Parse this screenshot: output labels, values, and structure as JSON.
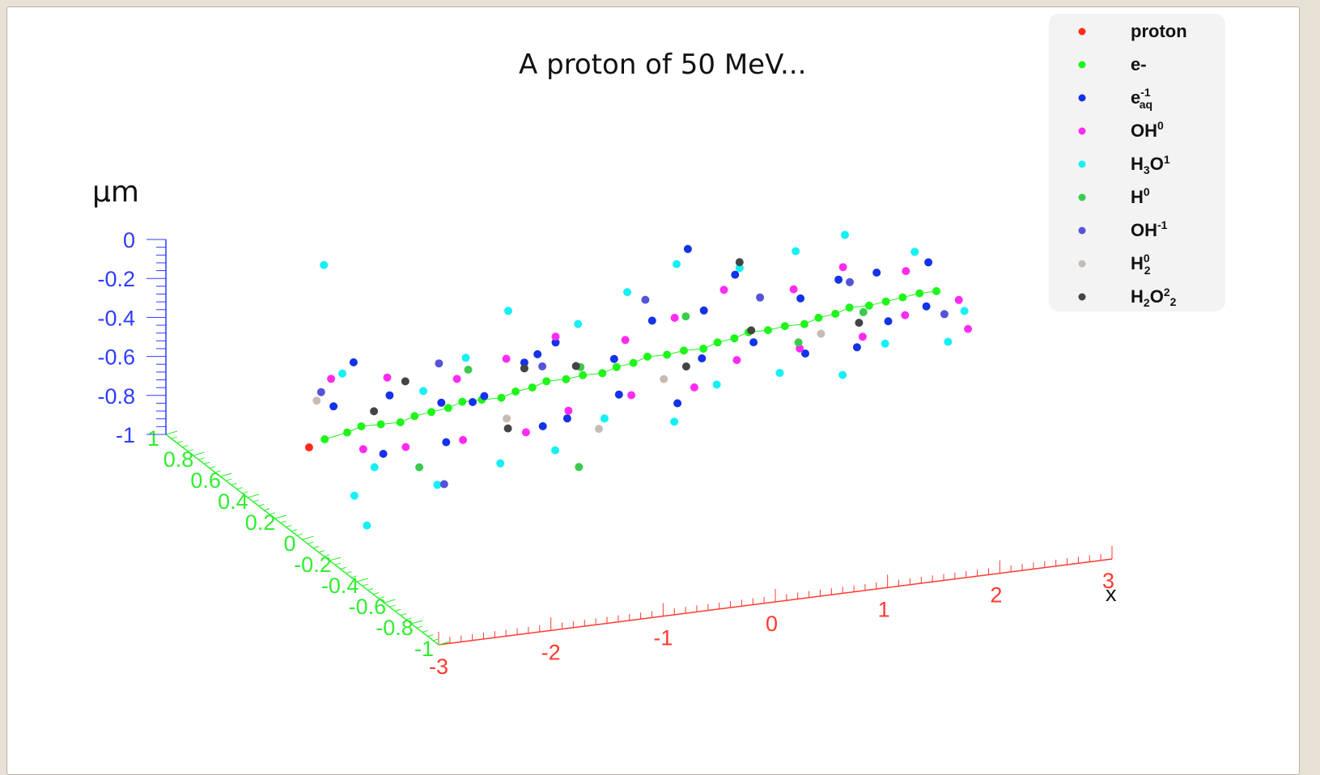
{
  "colors": {
    "proton": "#ff2a1a",
    "e_minus": "#1ef51a",
    "e_aq": "#1432e8",
    "OH0": "#ff2bf2",
    "H3O1": "#14f0f4",
    "H0": "#3cca4c",
    "OH_1": "#5454d8",
    "H2_0": "#c6bcb4",
    "H2O2": "#444444",
    "z_axis": "#2e3cff",
    "y_axis": "#30ee30",
    "x_axis": "#ff3a30"
  },
  "chart_data": {
    "type": "scatter",
    "title": "A proton of 50 MeV...",
    "zlabel": "µm",
    "xlabel": "x",
    "x_ticks": [
      "-3",
      "-2",
      "-1",
      "0",
      "1",
      "2",
      "3"
    ],
    "y_ticks": [
      "-1",
      "-0.8",
      "-0.6",
      "-0.4",
      "-0.2",
      "0",
      "0.2",
      "0.4",
      "0.6",
      "0.8",
      "1"
    ],
    "z_ticks": [
      "-1",
      "-0.8",
      "-0.6",
      "-0.4",
      "-0.2",
      "0"
    ],
    "xlim": [
      -3,
      3
    ],
    "ylim": [
      -1,
      1
    ],
    "zlim": [
      -1,
      0
    ],
    "legend_position": "top-right",
    "legend": [
      {
        "key": "proton",
        "label": "proton",
        "color_key": "proton"
      },
      {
        "key": "e_minus",
        "label": "e-",
        "color_key": "e_minus"
      },
      {
        "key": "e_aq",
        "label": "e",
        "sup": "-1",
        "sub": "aq",
        "color_key": "e_aq"
      },
      {
        "key": "OH0",
        "label": "OH",
        "sup": "0",
        "color_key": "OH0"
      },
      {
        "key": "H3O1",
        "label": "H",
        "sub": "3",
        "after": "O",
        "sup": "1",
        "color_key": "H3O1"
      },
      {
        "key": "H0",
        "label": "H",
        "sup": "0",
        "color_key": "H0"
      },
      {
        "key": "OH_1",
        "label": "OH",
        "sup": "-1",
        "color_key": "OH_1"
      },
      {
        "key": "H2_0",
        "label": "H",
        "sup": "0",
        "sub": "2",
        "color_key": "H2_0"
      },
      {
        "key": "H2O2",
        "label": "H",
        "sub": "2",
        "after": "O",
        "sup": "2",
        "sub2": "2",
        "color_key": "H2O2"
      }
    ],
    "series": [
      {
        "name": "proton",
        "color_key": "proton",
        "points": [
          [
            -3.0,
            -0.05,
            -0.5
          ]
        ]
      },
      {
        "name": "e-",
        "color_key": "e_minus",
        "points": [
          [
            -2.8,
            0,
            -0.5
          ],
          [
            -2.6,
            0,
            -0.48
          ],
          [
            -2.45,
            0.02,
            -0.47
          ],
          [
            -2.3,
            0,
            -0.46
          ],
          [
            -2.15,
            -0.02,
            -0.45
          ],
          [
            -2.0,
            0,
            -0.44
          ],
          [
            -1.85,
            0,
            -0.43
          ],
          [
            -1.7,
            0,
            -0.42
          ],
          [
            -1.55,
            0.02,
            -0.41
          ],
          [
            -1.4,
            0,
            -0.4
          ],
          [
            -1.25,
            -0.02,
            -0.39
          ],
          [
            -1.1,
            0,
            -0.38
          ],
          [
            -0.95,
            0,
            -0.37
          ],
          [
            -0.8,
            0.02,
            -0.36
          ],
          [
            -0.65,
            0,
            -0.35
          ],
          [
            -0.5,
            0,
            -0.34
          ],
          [
            -0.35,
            -0.02,
            -0.33
          ],
          [
            -0.2,
            0,
            -0.32
          ],
          [
            -0.05,
            0,
            -0.31
          ],
          [
            0.1,
            0.02,
            -0.3
          ],
          [
            0.25,
            0,
            -0.29
          ],
          [
            0.4,
            0,
            -0.28
          ],
          [
            0.55,
            -0.02,
            -0.27
          ],
          [
            0.7,
            0,
            -0.26
          ],
          [
            0.85,
            0,
            -0.25
          ],
          [
            1.0,
            0.02,
            -0.24
          ],
          [
            1.15,
            0,
            -0.23
          ],
          [
            1.3,
            0,
            -0.22
          ],
          [
            1.45,
            -0.02,
            -0.21
          ],
          [
            1.6,
            0,
            -0.2
          ],
          [
            1.75,
            0,
            -0.19
          ],
          [
            1.9,
            0.02,
            -0.18
          ],
          [
            2.05,
            0,
            -0.17
          ],
          [
            2.2,
            0,
            -0.16
          ],
          [
            2.35,
            0,
            -0.15
          ],
          [
            2.5,
            0,
            -0.14
          ],
          [
            2.65,
            0,
            -0.14
          ]
        ]
      },
      {
        "name": "e-1 aq",
        "color_key": "e_aq",
        "points": [
          [
            -2.6,
            0.1,
            -0.4
          ],
          [
            -2.4,
            -0.1,
            -0.55
          ],
          [
            -2.3,
            0.2,
            -0.25
          ],
          [
            -2.1,
            0.1,
            -0.38
          ],
          [
            -1.9,
            -0.15,
            -0.5
          ],
          [
            -1.7,
            0.05,
            -0.42
          ],
          [
            -1.5,
            -0.1,
            -0.32
          ],
          [
            -1.3,
            0.15,
            -0.5
          ],
          [
            -1.1,
            -0.2,
            -0.45
          ],
          [
            -0.9,
            0.1,
            -0.3
          ],
          [
            -0.7,
            -0.05,
            -0.52
          ],
          [
            -0.5,
            0.2,
            -0.28
          ],
          [
            -0.3,
            -0.1,
            -0.4
          ],
          [
            -0.1,
            0.1,
            -0.34
          ],
          [
            0.1,
            -0.2,
            -0.42
          ],
          [
            0.3,
            0.15,
            -0.2
          ],
          [
            0.5,
            -0.05,
            -0.3
          ],
          [
            0.7,
            0.1,
            -0.15
          ],
          [
            0.9,
            -0.1,
            -0.22
          ],
          [
            1.1,
            0.2,
            -0.05
          ],
          [
            1.3,
            -0.15,
            -0.28
          ],
          [
            1.5,
            0.05,
            -0.12
          ],
          [
            1.7,
            -0.2,
            -0.25
          ],
          [
            1.9,
            0.1,
            -0.08
          ],
          [
            2.1,
            -0.1,
            -0.2
          ],
          [
            2.3,
            0.15,
            -0.1
          ],
          [
            2.5,
            -0.05,
            -0.18
          ],
          [
            2.7,
            0.1,
            -0.05
          ],
          [
            0.8,
            0.3,
            0.05
          ],
          [
            -0.6,
            0.25,
            -0.36
          ]
        ]
      },
      {
        "name": "OH0",
        "color_key": "OH0",
        "points": [
          [
            -2.7,
            -0.2,
            -0.45
          ],
          [
            -2.5,
            0.2,
            -0.32
          ],
          [
            -2.2,
            -0.1,
            -0.53
          ],
          [
            -2.0,
            0.2,
            -0.35
          ],
          [
            -1.75,
            -0.15,
            -0.5
          ],
          [
            -1.5,
            0.1,
            -0.34
          ],
          [
            -1.25,
            -0.2,
            -0.47
          ],
          [
            -1.0,
            0.15,
            -0.3
          ],
          [
            -0.75,
            -0.1,
            -0.45
          ],
          [
            -0.5,
            0.2,
            -0.25
          ],
          [
            -0.25,
            -0.15,
            -0.38
          ],
          [
            0.0,
            0.1,
            -0.25
          ],
          [
            0.25,
            -0.2,
            -0.35
          ],
          [
            0.5,
            0.15,
            -0.2
          ],
          [
            0.75,
            -0.1,
            -0.3
          ],
          [
            1.0,
            0.2,
            -0.12
          ],
          [
            1.25,
            -0.15,
            -0.25
          ],
          [
            1.5,
            0.1,
            -0.1
          ],
          [
            1.75,
            -0.2,
            -0.2
          ],
          [
            2.0,
            0.15,
            -0.05
          ],
          [
            2.25,
            -0.1,
            -0.18
          ],
          [
            2.5,
            0.1,
            -0.08
          ],
          [
            2.75,
            -0.15,
            -0.26
          ],
          [
            2.85,
            0,
            -0.2
          ]
        ]
      },
      {
        "name": "H3O1",
        "color_key": "H3O1",
        "points": [
          [
            -2.9,
            -0.3,
            -0.62
          ],
          [
            -2.85,
            -0.35,
            -0.75
          ],
          [
            -2.6,
            -0.2,
            -0.55
          ],
          [
            -2.4,
            0.2,
            -0.3
          ],
          [
            -2.1,
            -0.25,
            -0.65
          ],
          [
            -1.8,
            0.1,
            -0.38
          ],
          [
            -1.6,
            -0.3,
            -0.55
          ],
          [
            -1.3,
            0.2,
            -0.3
          ],
          [
            -1.05,
            -0.25,
            -0.55
          ],
          [
            -0.8,
            0.3,
            -0.15
          ],
          [
            -0.55,
            -0.2,
            -0.45
          ],
          [
            -0.3,
            0.2,
            -0.2
          ],
          [
            -0.05,
            -0.3,
            -0.45
          ],
          [
            0.2,
            0.25,
            -0.1
          ],
          [
            0.45,
            -0.2,
            -0.35
          ],
          [
            0.7,
            0.3,
            -0.02
          ],
          [
            0.95,
            -0.25,
            -0.3
          ],
          [
            1.2,
            0.25,
            -0.05
          ],
          [
            1.45,
            -0.3,
            -0.32
          ],
          [
            1.7,
            0.25,
            0.0
          ],
          [
            1.95,
            -0.2,
            -0.25
          ],
          [
            2.2,
            0.3,
            0.02
          ],
          [
            2.45,
            -0.25,
            -0.25
          ],
          [
            2.7,
            0.2,
            -0.05
          ],
          [
            2.9,
            0,
            -0.26
          ],
          [
            -2.2,
            0.5,
            0.08
          ]
        ]
      },
      {
        "name": "H0",
        "color_key": "H0",
        "points": [
          [
            -2.2,
            -0.2,
            -0.58
          ],
          [
            -1.4,
            0.1,
            -0.3
          ],
          [
            -0.9,
            -0.3,
            -0.62
          ],
          [
            -0.4,
            0.1,
            -0.36
          ],
          [
            0.6,
            0.15,
            -0.2
          ],
          [
            1.3,
            -0.1,
            -0.25
          ],
          [
            2.0,
            0,
            -0.2
          ]
        ]
      },
      {
        "name": "OH-1",
        "color_key": "OH_1",
        "points": [
          [
            -2.65,
            0.15,
            -0.35
          ],
          [
            -2.1,
            -0.3,
            -0.62
          ],
          [
            -1.6,
            0.15,
            -0.28
          ],
          [
            -0.8,
            0.05,
            -0.3
          ],
          [
            0.3,
            0.2,
            -0.12
          ],
          [
            1.2,
            0.1,
            -0.12
          ],
          [
            2.0,
            0.1,
            -0.1
          ],
          [
            2.6,
            -0.1,
            -0.2
          ]
        ]
      },
      {
        "name": "H20",
        "color_key": "H2_0",
        "points": [
          [
            -2.75,
            0.1,
            -0.36
          ],
          [
            -1.3,
            -0.1,
            -0.45
          ],
          [
            -0.6,
            -0.2,
            -0.5
          ],
          [
            0.1,
            -0.1,
            -0.35
          ],
          [
            1.5,
            -0.1,
            -0.22
          ]
        ]
      },
      {
        "name": "H2O2",
        "color_key": "H2O2",
        "points": [
          [
            -2.3,
            0.05,
            -0.42
          ],
          [
            -1.9,
            0.15,
            -0.35
          ],
          [
            -1.35,
            -0.15,
            -0.47
          ],
          [
            -0.9,
            0.1,
            -0.33
          ],
          [
            -0.5,
            0.05,
            -0.32
          ],
          [
            0.3,
            -0.1,
            -0.3
          ],
          [
            1.0,
            0,
            -0.22
          ],
          [
            1.2,
            0.25,
            -0.02
          ],
          [
            1.9,
            -0.05,
            -0.22
          ]
        ]
      }
    ]
  }
}
